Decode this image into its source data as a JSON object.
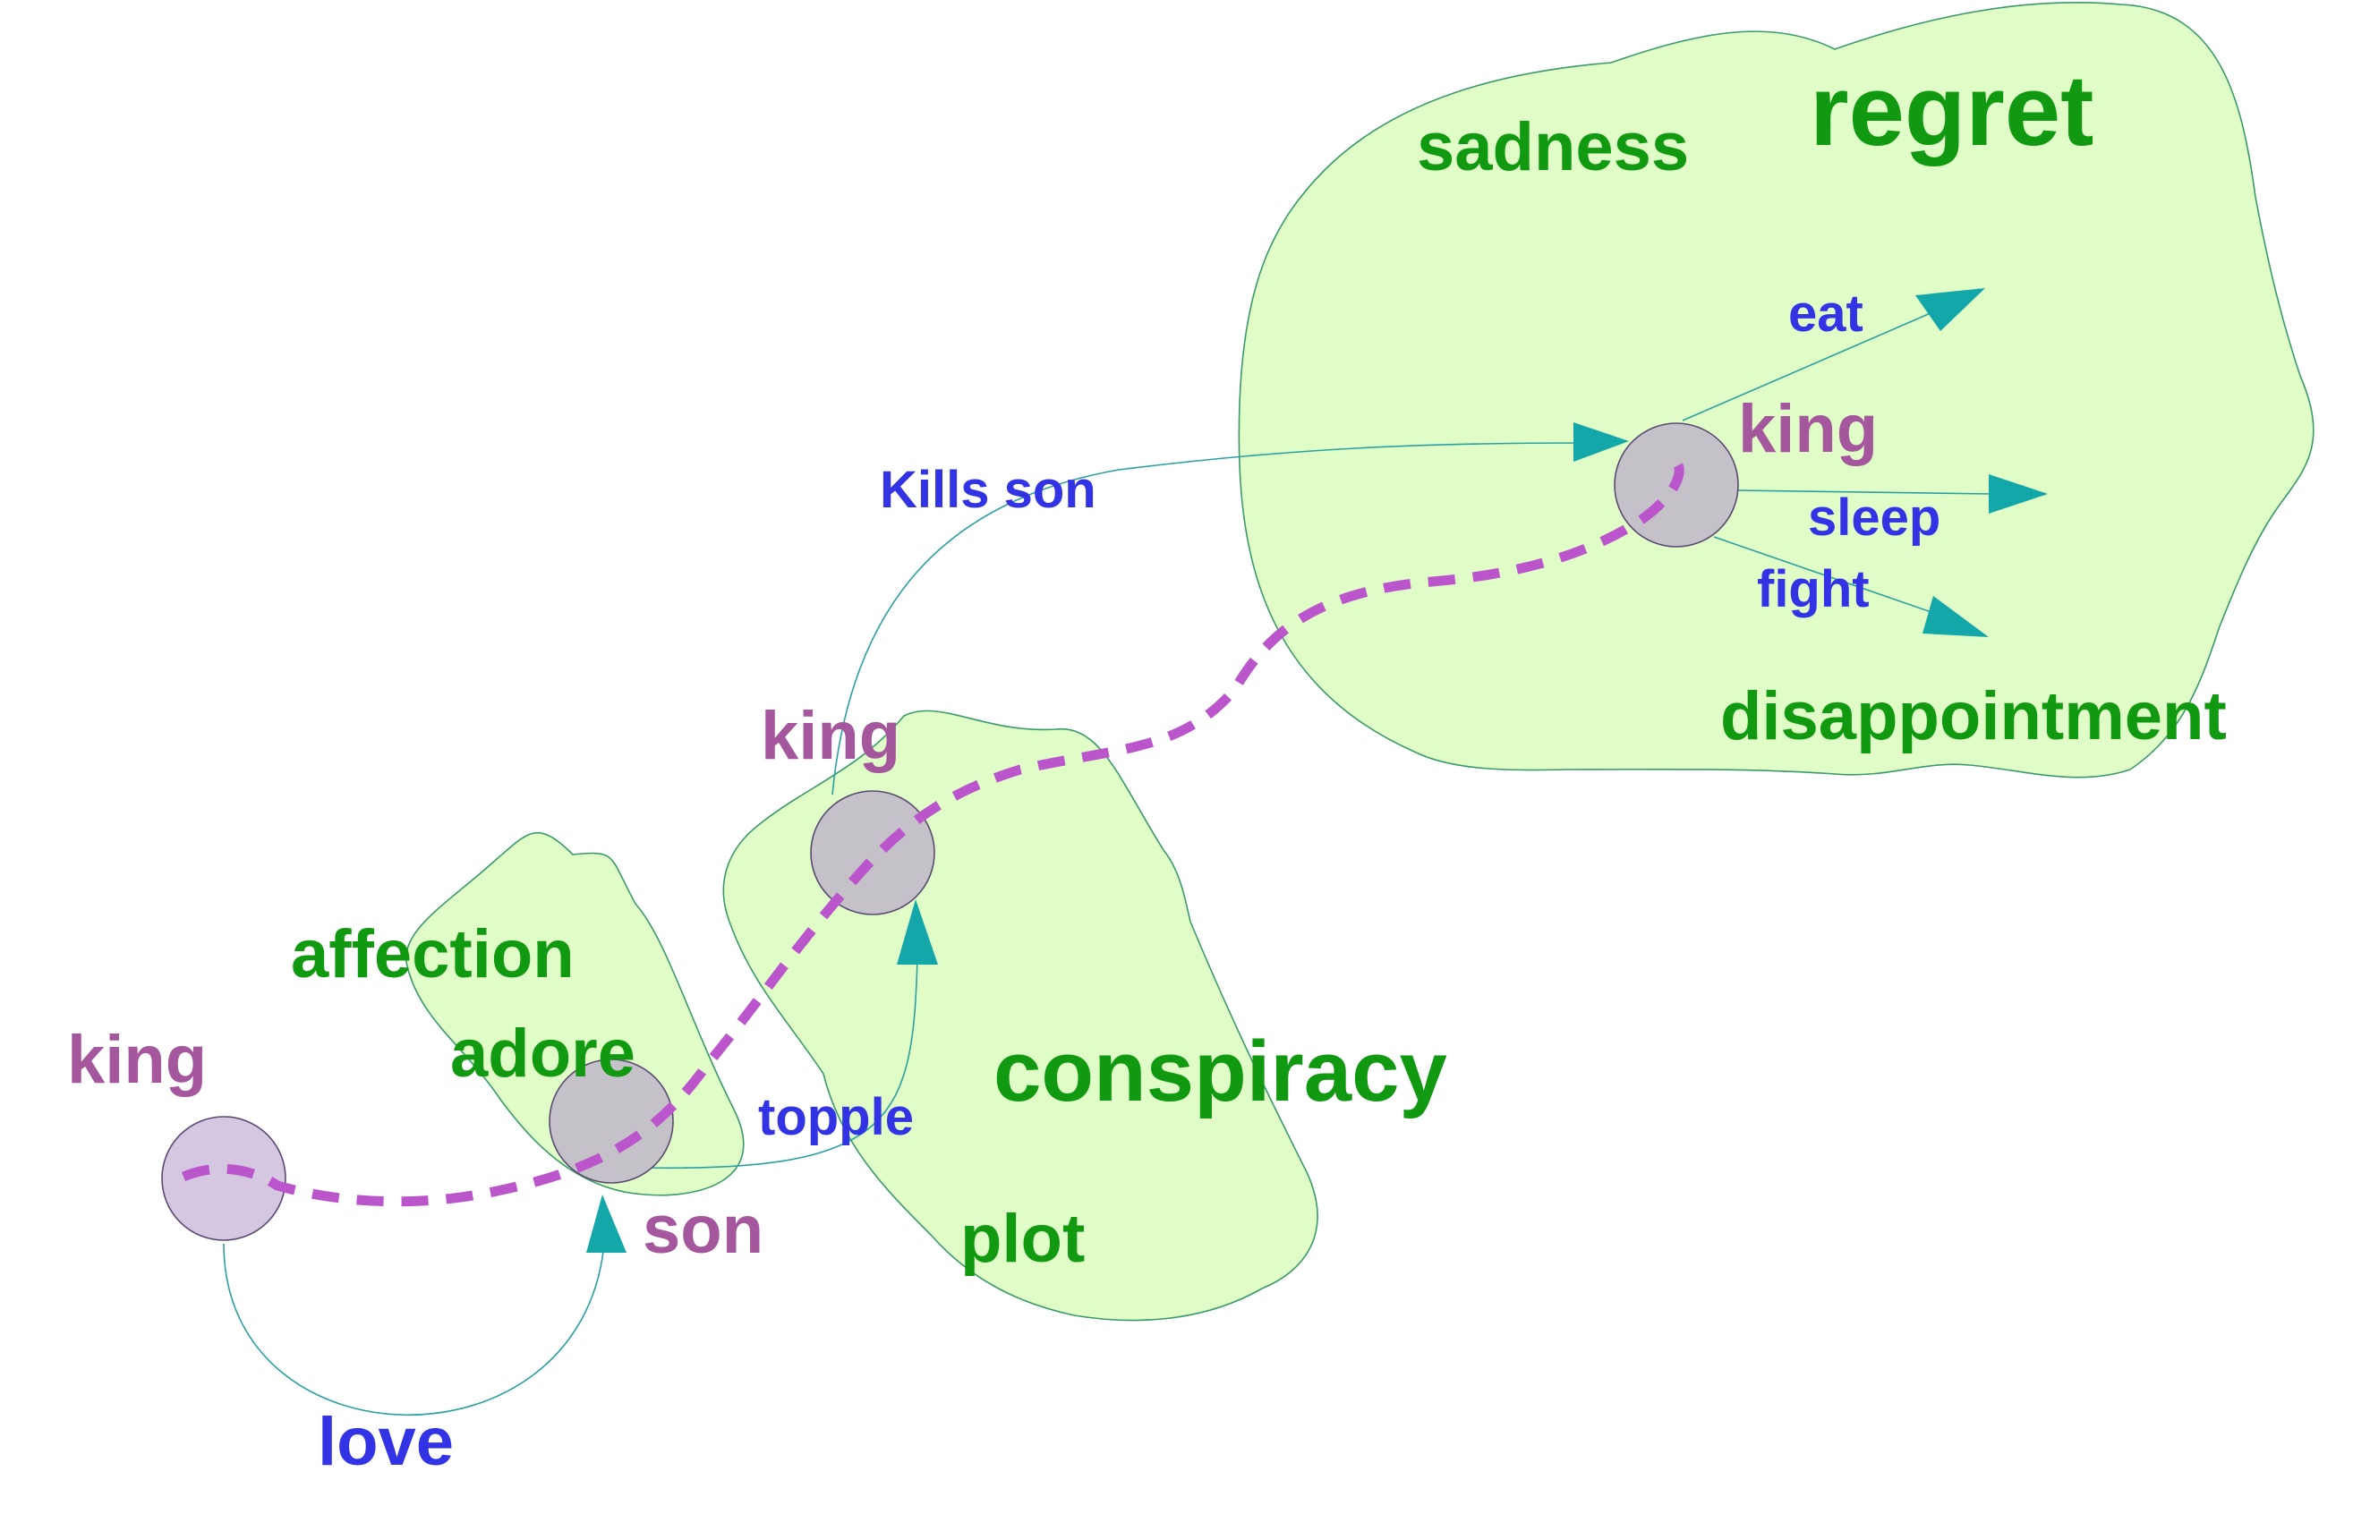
{
  "colors": {
    "region_fill": "#e0fdc8",
    "emotion_text": "#119911",
    "entity_text": "#a5579d",
    "action_text": "#3333e6",
    "edge_stroke": "#2aa0a0",
    "arrowhead": "#13a7a9",
    "node_fill": "#c4c2c8",
    "start_node_fill": "#d5c6e2",
    "trajectory": "#bb55cc"
  },
  "regions": [
    {
      "id": "affection-region",
      "labels": [
        "affection",
        "adore"
      ]
    },
    {
      "id": "conspiracy-region",
      "labels": [
        "conspiracy",
        "plot"
      ]
    },
    {
      "id": "regret-region",
      "labels": [
        "regret",
        "sadness",
        "disappointment"
      ]
    }
  ],
  "emotion_labels": {
    "affection": "affection",
    "adore": "adore",
    "conspiracy": "conspiracy",
    "plot": "plot",
    "regret": "regret",
    "sadness": "sadness",
    "disappointment": "disappointment"
  },
  "entity_labels": {
    "king_1": "king",
    "son": "son",
    "king_2": "king",
    "king_3": "king"
  },
  "action_labels": {
    "love": "love",
    "topple": "topple",
    "kills_son": "Kills son",
    "eat": "eat",
    "sleep": "sleep",
    "fight": "fight"
  },
  "nodes": [
    {
      "id": "king-start",
      "label": "king"
    },
    {
      "id": "son",
      "label": "son"
    },
    {
      "id": "king-mid",
      "label": "king"
    },
    {
      "id": "king-end",
      "label": "king"
    }
  ]
}
